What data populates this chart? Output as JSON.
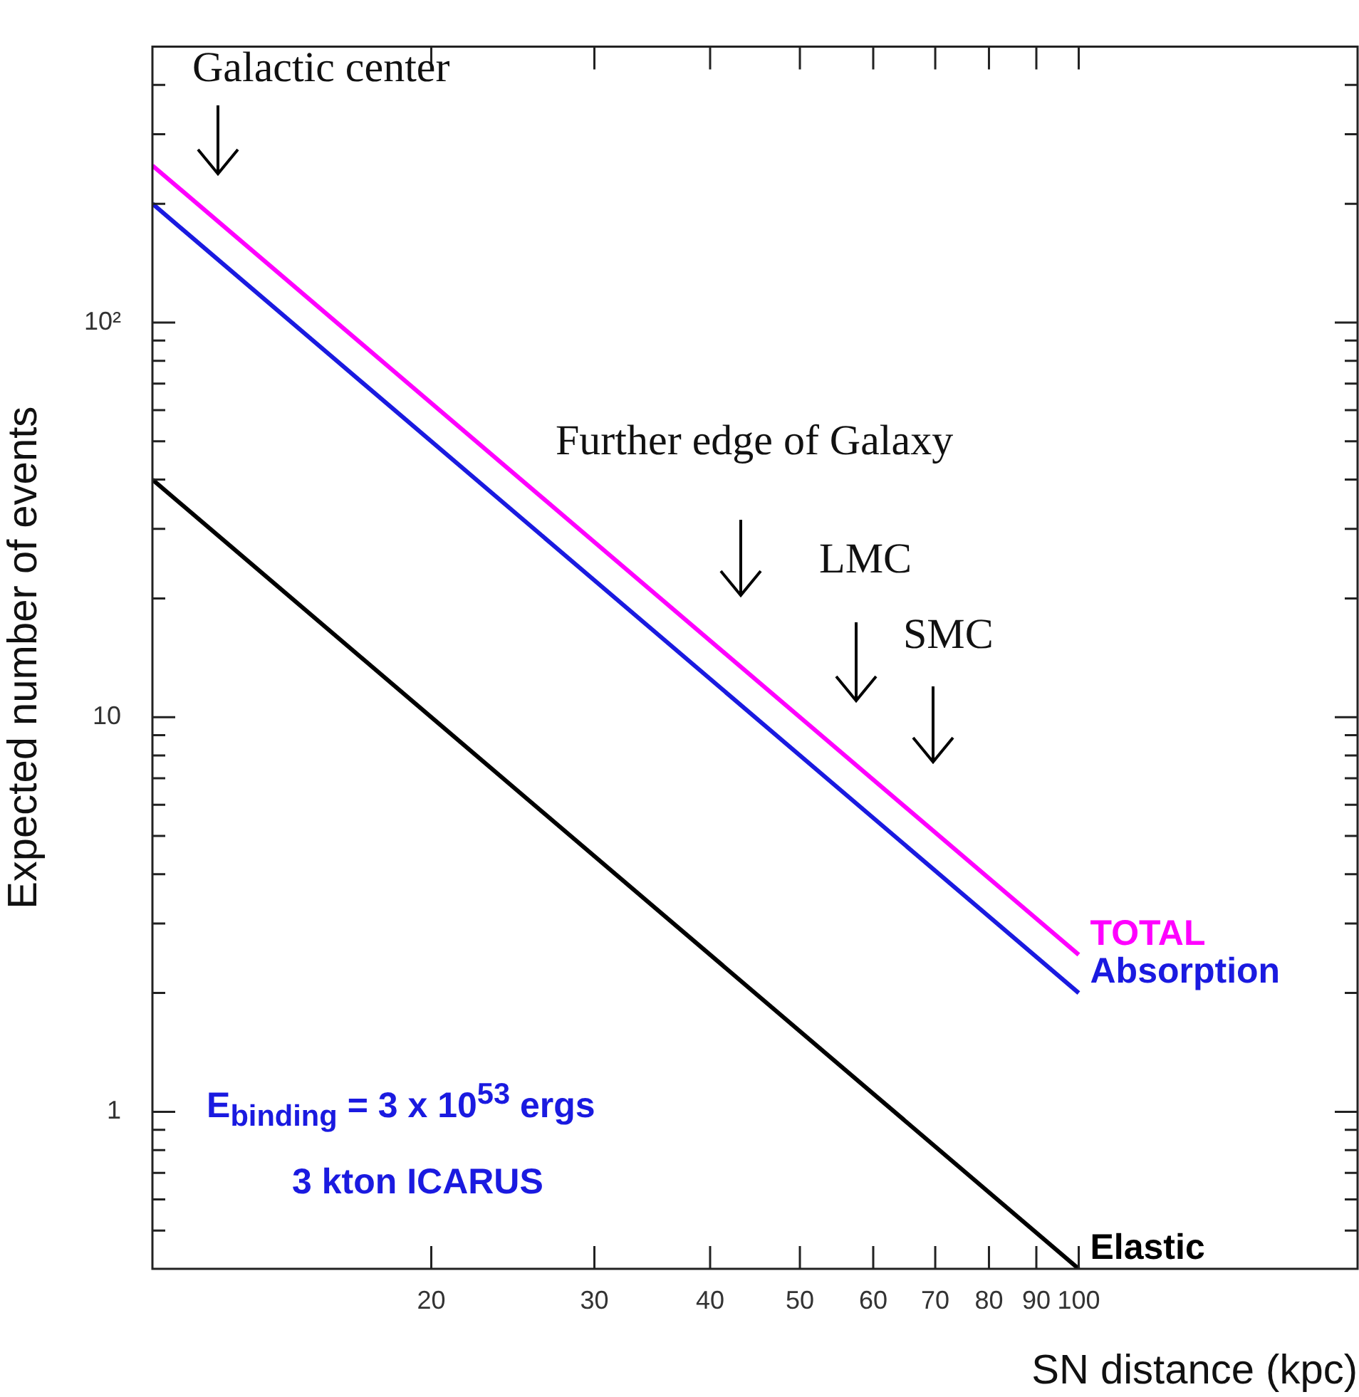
{
  "chart_data": {
    "type": "line",
    "xlabel": "SN distance (kpc)",
    "ylabel": "Expected number of events",
    "log": "xy",
    "grid": false,
    "legend": false,
    "marker": "none",
    "line_style": "solid",
    "x": [
      10,
      100
    ],
    "series": [
      {
        "name": "TOTAL",
        "color": "#ff00ff",
        "values": [
          250,
          2.5
        ]
      },
      {
        "name": "Absorption",
        "color": "#1a1ae0",
        "values": [
          200,
          2
        ]
      },
      {
        "name": "Elastic",
        "color": "#000000",
        "values": [
          40,
          0.4
        ]
      }
    ],
    "xlim": [
      10,
      200
    ],
    "xticks": [
      20,
      30,
      40,
      50,
      60,
      70,
      80,
      90,
      100
    ],
    "ylim": [
      0.4,
      500
    ],
    "yticks": [
      {
        "value": 0.5,
        "label": null
      },
      {
        "value": 0.6,
        "label": null
      },
      {
        "value": 0.7,
        "label": null
      },
      {
        "value": 0.8,
        "label": null
      },
      {
        "value": 0.9,
        "label": null
      },
      1,
      {
        "value": 2,
        "label": null
      },
      {
        "value": 3,
        "label": null
      },
      {
        "value": 4,
        "label": null
      },
      {
        "value": 5,
        "label": null
      },
      {
        "value": 6,
        "label": null
      },
      {
        "value": 7,
        "label": null
      },
      {
        "value": 8,
        "label": null
      },
      {
        "value": 9,
        "label": null
      },
      10,
      {
        "value": 20,
        "label": null
      },
      {
        "value": 30,
        "label": null
      },
      {
        "value": 40,
        "label": null
      },
      {
        "value": 50,
        "label": null
      },
      {
        "value": 60,
        "label": null
      },
      {
        "value": 70,
        "label": null
      },
      {
        "value": 80,
        "label": null
      },
      {
        "value": 90,
        "label": null
      },
      {
        "value": 100,
        "label": "10²"
      },
      {
        "value": 200,
        "label": null
      },
      {
        "value": 300,
        "label": null
      },
      {
        "value": 400,
        "label": null
      }
    ],
    "annotations": [
      "Galactic center",
      "Further edge of Galaxy",
      "LMC",
      "SMC",
      "E$_{binding}$ = 3 x 10$^{53}$ ergs",
      "3 kton ICARUS"
    ]
  }
}
